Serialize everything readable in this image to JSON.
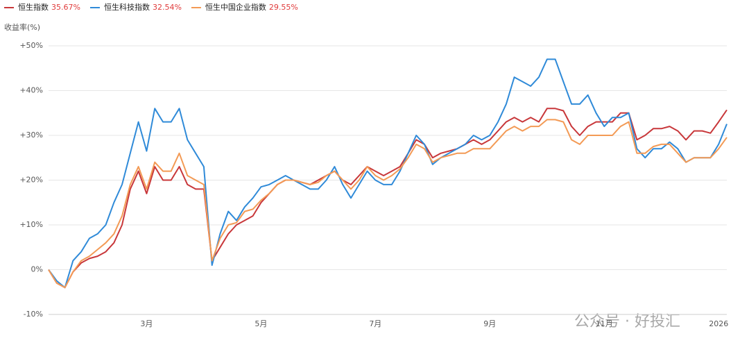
{
  "chart_data": {
    "type": "line",
    "y_label": "收益率(%)",
    "watermark": "公众号 · 好投汇",
    "categories": [
      null,
      null,
      null,
      null,
      null,
      null,
      null,
      null,
      null,
      null,
      null,
      null,
      "3月",
      null,
      null,
      null,
      null,
      null,
      null,
      null,
      null,
      null,
      null,
      null,
      null,
      null,
      "5月",
      null,
      null,
      null,
      null,
      null,
      null,
      null,
      null,
      null,
      null,
      null,
      null,
      null,
      "7月",
      null,
      null,
      null,
      null,
      null,
      null,
      null,
      null,
      null,
      null,
      null,
      null,
      null,
      "9月",
      null,
      null,
      null,
      null,
      null,
      null,
      null,
      null,
      null,
      null,
      null,
      null,
      null,
      "11月",
      null,
      null,
      null,
      null,
      null,
      null,
      null,
      null,
      null,
      null,
      null,
      null,
      null,
      "2026",
      null
    ],
    "series": [
      {
        "name": "恒生指数",
        "legend_value": "35.67%",
        "color": "#c8373a",
        "values": [
          0,
          -3,
          -4,
          -0.5,
          1.5,
          2.5,
          3,
          4,
          6,
          10,
          18,
          22,
          17,
          23,
          20,
          20,
          23,
          19,
          18,
          18,
          2,
          5,
          8,
          10,
          11,
          12,
          15,
          17,
          19,
          20,
          20,
          19.5,
          19,
          20,
          21,
          22,
          20,
          19,
          21,
          23,
          22,
          21,
          22,
          23,
          26,
          29,
          28,
          25,
          26,
          26.5,
          27,
          28,
          29,
          28,
          29,
          31,
          33,
          34,
          33,
          34,
          33,
          36,
          36,
          35.5,
          32,
          30,
          32,
          33,
          33,
          33,
          35,
          35,
          29,
          30,
          31.5,
          31.5,
          32,
          31,
          29,
          31,
          31,
          30.5,
          33,
          35.67
        ]
      },
      {
        "name": "恒生科技指数",
        "legend_value": "32.54%",
        "color": "#2f8ad8",
        "values": [
          0,
          -2.5,
          -4,
          2,
          4,
          7,
          8,
          10,
          15,
          19,
          26,
          33,
          26.5,
          36,
          33,
          33,
          36,
          29,
          26,
          23,
          1,
          8,
          13,
          11,
          14,
          16,
          18.5,
          19,
          20,
          21,
          20,
          19,
          18,
          18,
          20,
          23,
          19,
          16,
          19,
          22,
          20,
          19,
          19,
          22,
          26,
          30,
          28,
          23.5,
          25,
          26,
          27,
          28,
          30,
          29,
          30,
          33,
          37,
          43,
          42,
          41,
          43,
          47,
          47,
          42,
          37,
          37,
          39,
          35,
          32,
          34,
          34,
          35,
          27,
          25,
          27,
          27,
          28.5,
          27,
          24,
          25,
          25,
          25,
          28,
          32.54
        ]
      },
      {
        "name": "恒生中国企业指数",
        "legend_value": "29.55%",
        "color": "#f39a55",
        "values": [
          0,
          -3,
          -4,
          -0.5,
          2,
          3,
          4.5,
          6,
          8,
          12,
          19,
          23,
          18,
          24,
          22,
          22,
          26,
          21,
          20,
          19,
          2,
          7,
          10,
          10.5,
          13,
          13.5,
          15.5,
          17,
          19,
          20,
          20,
          19.5,
          19,
          19.5,
          21,
          22,
          20,
          18,
          20,
          23,
          21,
          20,
          21,
          22.5,
          25,
          28,
          27,
          24,
          25,
          25.5,
          26,
          26,
          27,
          27,
          27,
          29,
          31,
          32,
          31,
          32,
          32,
          33.5,
          33.5,
          33,
          29,
          28,
          30,
          30,
          30,
          30,
          32,
          33,
          26,
          26,
          27.5,
          28,
          28,
          26,
          24,
          25,
          25,
          25,
          27,
          29.55
        ]
      }
    ],
    "ylim": [
      -10,
      50
    ],
    "yticks": [
      {
        "value": -10,
        "label": "-10%"
      },
      {
        "value": 0,
        "label": "0%"
      },
      {
        "value": 10,
        "label": "+10%"
      },
      {
        "value": 20,
        "label": "+20%"
      },
      {
        "value": 30,
        "label": "+30%"
      },
      {
        "value": 40,
        "label": "+40%"
      },
      {
        "value": 50,
        "label": "+50%"
      }
    ],
    "grid": true
  }
}
